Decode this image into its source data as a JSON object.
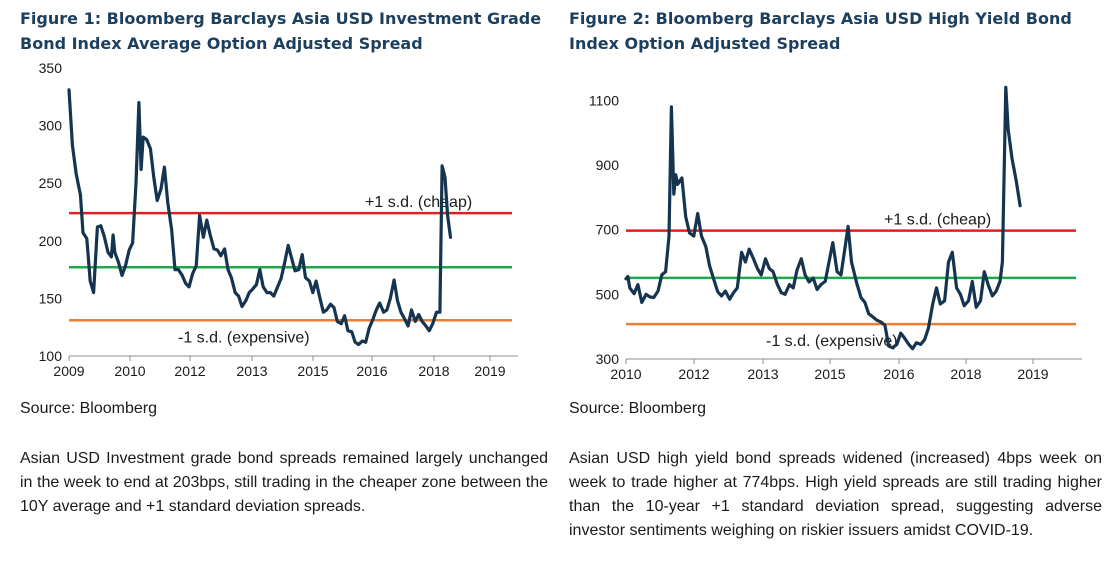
{
  "chart_data": [
    {
      "type": "line",
      "title": "Figure 1: Bloomberg Barclays Asia USD Investment Grade Bond Index Average Option Adjusted Spread",
      "ylim": [
        100,
        350
      ],
      "yticks": [
        100,
        150,
        200,
        250,
        300,
        350
      ],
      "xticks": [
        "2009",
        "2010",
        "2012",
        "2013",
        "2015",
        "2016",
        "2018",
        "2019"
      ],
      "xlim": [
        2009,
        2019.45
      ],
      "grid": false,
      "colors": {
        "line": "#14344f",
        "upper": "#e02020",
        "mean": "#1fa84a",
        "lower": "#ed7d31"
      },
      "series": [
        {
          "values": [
            [
              2009.0,
              331
            ],
            [
              2009.08,
              283
            ],
            [
              2009.17,
              258
            ],
            [
              2009.27,
              240
            ],
            [
              2009.33,
              207
            ],
            [
              2009.42,
              202
            ],
            [
              2009.5,
              165
            ],
            [
              2009.58,
              155
            ],
            [
              2009.67,
              212
            ],
            [
              2009.75,
              213
            ],
            [
              2009.83,
              204
            ],
            [
              2009.92,
              190
            ],
            [
              2010.0,
              186
            ],
            [
              2010.04,
              205
            ],
            [
              2010.08,
              190
            ],
            [
              2010.17,
              181
            ],
            [
              2010.25,
              170
            ],
            [
              2010.33,
              178
            ],
            [
              2010.42,
              192
            ],
            [
              2010.5,
              198
            ],
            [
              2010.58,
              250
            ],
            [
              2010.65,
              320
            ],
            [
              2010.7,
              262
            ],
            [
              2010.75,
              290
            ],
            [
              2010.83,
              288
            ],
            [
              2010.92,
              280
            ],
            [
              2011.0,
              255
            ],
            [
              2011.08,
              235
            ],
            [
              2011.17,
              245
            ],
            [
              2011.25,
              264
            ],
            [
              2011.33,
              233
            ],
            [
              2011.42,
              210
            ],
            [
              2011.5,
              175
            ],
            [
              2011.58,
              175
            ],
            [
              2011.67,
              170
            ],
            [
              2011.75,
              163
            ],
            [
              2011.83,
              160
            ],
            [
              2011.92,
              172
            ],
            [
              2012.0,
              178
            ],
            [
              2012.08,
              222
            ],
            [
              2012.17,
              203
            ],
            [
              2012.25,
              218
            ],
            [
              2012.33,
              205
            ],
            [
              2012.42,
              193
            ],
            [
              2012.5,
              192
            ],
            [
              2012.58,
              187
            ],
            [
              2012.67,
              193
            ],
            [
              2012.75,
              175
            ],
            [
              2012.83,
              168
            ],
            [
              2012.92,
              155
            ],
            [
              2013.0,
              152
            ],
            [
              2013.08,
              143
            ],
            [
              2013.17,
              148
            ],
            [
              2013.25,
              155
            ],
            [
              2013.33,
              158
            ],
            [
              2013.42,
              162
            ],
            [
              2013.5,
              175
            ],
            [
              2013.58,
              160
            ],
            [
              2013.67,
              155
            ],
            [
              2013.75,
              155
            ],
            [
              2013.83,
              152
            ],
            [
              2013.92,
              160
            ],
            [
              2014.0,
              167
            ],
            [
              2014.08,
              180
            ],
            [
              2014.17,
              196
            ],
            [
              2014.25,
              185
            ],
            [
              2014.33,
              174
            ],
            [
              2014.42,
              175
            ],
            [
              2014.5,
              188
            ],
            [
              2014.58,
              168
            ],
            [
              2014.67,
              165
            ],
            [
              2014.75,
              155
            ],
            [
              2014.83,
              165
            ],
            [
              2014.92,
              150
            ],
            [
              2015.0,
              138
            ],
            [
              2015.08,
              140
            ],
            [
              2015.17,
              145
            ],
            [
              2015.25,
              142
            ],
            [
              2015.33,
              130
            ],
            [
              2015.42,
              128
            ],
            [
              2015.5,
              135
            ],
            [
              2015.58,
              122
            ],
            [
              2015.67,
              121
            ],
            [
              2015.75,
              112
            ],
            [
              2015.83,
              110
            ],
            [
              2015.92,
              113
            ],
            [
              2016.0,
              112
            ],
            [
              2016.08,
              124
            ],
            [
              2016.17,
              132
            ],
            [
              2016.25,
              140
            ],
            [
              2016.33,
              146
            ],
            [
              2016.42,
              138
            ],
            [
              2016.5,
              140
            ],
            [
              2016.58,
              150
            ],
            [
              2016.67,
              166
            ],
            [
              2016.75,
              148
            ],
            [
              2016.83,
              138
            ],
            [
              2016.92,
              132
            ],
            [
              2017.0,
              126
            ],
            [
              2017.08,
              140
            ],
            [
              2017.17,
              130
            ],
            [
              2017.25,
              136
            ],
            [
              2017.33,
              130
            ],
            [
              2017.42,
              126
            ],
            [
              2017.5,
              122
            ],
            [
              2017.58,
              128
            ],
            [
              2017.67,
              138
            ],
            [
              2017.75,
              138
            ],
            [
              2017.8,
              265
            ],
            [
              2017.87,
              255
            ],
            [
              2017.93,
              222
            ],
            [
              2018.0,
              203
            ]
          ]
        }
      ],
      "reference_lines": [
        {
          "label": "+1 s.d. (cheap)",
          "value": 224
        },
        {
          "label": "",
          "value": 177
        },
        {
          "label": "-1 s.d. (expensive)",
          "value": 131
        }
      ]
    },
    {
      "type": "line",
      "title": "Figure 2: Bloomberg Barclays Asia USD High Yield Bond Index Option Adjusted Spread",
      "ylim": [
        300,
        1200
      ],
      "yticks": [
        300,
        500,
        700,
        900,
        1100
      ],
      "xticks": [
        "2010",
        "2012",
        "2013",
        "2015",
        "2016",
        "2018",
        "2019"
      ],
      "xlim": [
        2010,
        2019.42
      ],
      "grid": false,
      "colors": {
        "line": "#14344f",
        "upper": "#e02020",
        "mean": "#1fa84a",
        "lower": "#ed7d31"
      },
      "series": [
        {
          "values": [
            [
              2010.0,
              548
            ],
            [
              2010.04,
              555
            ],
            [
              2010.08,
              520
            ],
            [
              2010.17,
              502
            ],
            [
              2010.25,
              530
            ],
            [
              2010.33,
              475
            ],
            [
              2010.42,
              500
            ],
            [
              2010.5,
              492
            ],
            [
              2010.58,
              490
            ],
            [
              2010.67,
              510
            ],
            [
              2010.75,
              560
            ],
            [
              2010.83,
              570
            ],
            [
              2010.9,
              680
            ],
            [
              2010.95,
              1080
            ],
            [
              2011.0,
              810
            ],
            [
              2011.04,
              870
            ],
            [
              2011.08,
              840
            ],
            [
              2011.17,
              860
            ],
            [
              2011.25,
              740
            ],
            [
              2011.33,
              690
            ],
            [
              2011.42,
              680
            ],
            [
              2011.5,
              750
            ],
            [
              2011.58,
              680
            ],
            [
              2011.67,
              648
            ],
            [
              2011.75,
              588
            ],
            [
              2011.83,
              550
            ],
            [
              2011.92,
              508
            ],
            [
              2012.0,
              495
            ],
            [
              2012.08,
              510
            ],
            [
              2012.17,
              485
            ],
            [
              2012.25,
              505
            ],
            [
              2012.33,
              520
            ],
            [
              2012.42,
              630
            ],
            [
              2012.5,
              600
            ],
            [
              2012.58,
              640
            ],
            [
              2012.67,
              610
            ],
            [
              2012.75,
              580
            ],
            [
              2012.83,
              560
            ],
            [
              2012.92,
              610
            ],
            [
              2013.0,
              580
            ],
            [
              2013.08,
              570
            ],
            [
              2013.17,
              530
            ],
            [
              2013.25,
              505
            ],
            [
              2013.33,
              500
            ],
            [
              2013.42,
              530
            ],
            [
              2013.5,
              520
            ],
            [
              2013.58,
              575
            ],
            [
              2013.67,
              610
            ],
            [
              2013.75,
              560
            ],
            [
              2013.83,
              538
            ],
            [
              2013.92,
              550
            ],
            [
              2014.0,
              515
            ],
            [
              2014.08,
              530
            ],
            [
              2014.17,
              540
            ],
            [
              2014.25,
              600
            ],
            [
              2014.33,
              660
            ],
            [
              2014.42,
              570
            ],
            [
              2014.5,
              560
            ],
            [
              2014.58,
              640
            ],
            [
              2014.65,
              710
            ],
            [
              2014.72,
              600
            ],
            [
              2014.83,
              535
            ],
            [
              2014.92,
              490
            ],
            [
              2015.0,
              475
            ],
            [
              2015.08,
              440
            ],
            [
              2015.17,
              430
            ],
            [
              2015.25,
              420
            ],
            [
              2015.33,
              415
            ],
            [
              2015.42,
              405
            ],
            [
              2015.5,
              340
            ],
            [
              2015.58,
              335
            ],
            [
              2015.67,
              345
            ],
            [
              2015.75,
              380
            ],
            [
              2015.83,
              365
            ],
            [
              2015.92,
              345
            ],
            [
              2016.0,
              332
            ],
            [
              2016.08,
              350
            ],
            [
              2016.17,
              345
            ],
            [
              2016.25,
              360
            ],
            [
              2016.33,
              395
            ],
            [
              2016.42,
              470
            ],
            [
              2016.5,
              520
            ],
            [
              2016.58,
              470
            ],
            [
              2016.67,
              480
            ],
            [
              2016.75,
              600
            ],
            [
              2016.83,
              630
            ],
            [
              2016.92,
              520
            ],
            [
              2017.0,
              500
            ],
            [
              2017.08,
              465
            ],
            [
              2017.17,
              480
            ],
            [
              2017.25,
              540
            ],
            [
              2017.33,
              460
            ],
            [
              2017.42,
              480
            ],
            [
              2017.5,
              570
            ],
            [
              2017.58,
              530
            ],
            [
              2017.67,
              495
            ],
            [
              2017.75,
              510
            ],
            [
              2017.83,
              540
            ],
            [
              2017.88,
              600
            ],
            [
              2017.95,
              1140
            ],
            [
              2018.0,
              1010
            ],
            [
              2018.08,
              920
            ],
            [
              2018.17,
              850
            ],
            [
              2018.25,
              774
            ]
          ]
        }
      ],
      "reference_lines": [
        {
          "label": "+1 s.d. (cheap)",
          "value": 697
        },
        {
          "label": "",
          "value": 551
        },
        {
          "label": "-1 s.d. (expensive)",
          "value": 408
        }
      ]
    }
  ],
  "left": {
    "title": "Figure 1: Bloomberg Barclays Asia USD Investment Grade Bond Index Average Option Adjusted Spread",
    "source": "Source: Bloomberg",
    "commentary": "Asian USD Investment grade bond spreads remained largely unchanged in the week to end at 203bps, still trading in the cheaper zone between the 10Y average and +1 standard deviation spreads."
  },
  "right": {
    "title": "Figure 2: Bloomberg Barclays Asia USD High Yield Bond Index Option Adjusted Spread",
    "source": "Source: Bloomberg",
    "commentary": "Asian USD high yield bond spreads widened (increased) 4bps week on week to trade higher at 774bps. High yield spreads are still trading higher than the 10-year +1 standard deviation spread, suggesting adverse investor sentiments weighing on riskier issuers amidst COVID-19."
  }
}
